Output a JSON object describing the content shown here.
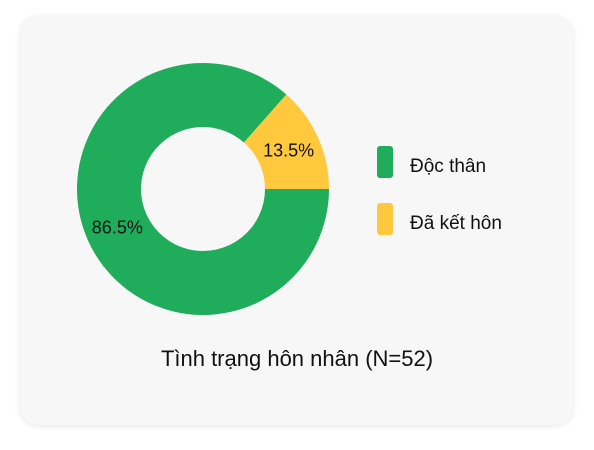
{
  "chart_data": {
    "type": "pie",
    "title": "Tình trạng hôn nhân (N=52)",
    "categories": [
      "Độc thân",
      "Đã kết hôn"
    ],
    "values": [
      86.5,
      13.5
    ],
    "labels": [
      "86.5%",
      "13.5%"
    ],
    "colors": [
      "#1fac5b",
      "#ffc83d"
    ],
    "legend": "right"
  }
}
